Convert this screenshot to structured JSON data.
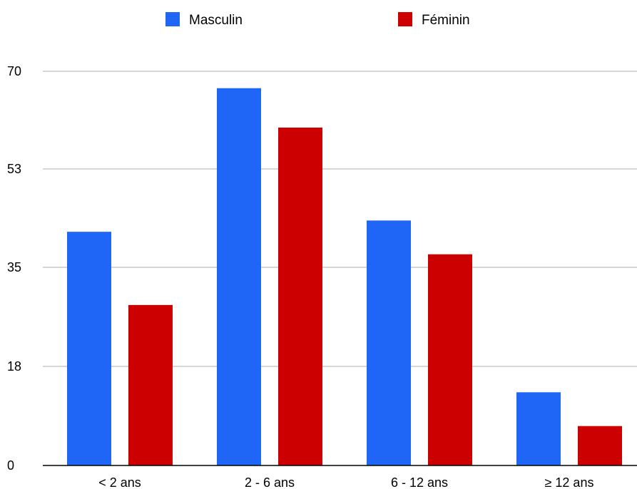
{
  "chart_data": {
    "type": "bar",
    "categories": [
      "< 2 ans",
      "2 - 6 ans",
      "6 - 12 ans",
      "≥ 12 ans"
    ],
    "series": [
      {
        "name": "Masculin",
        "color": "#1f66f7",
        "values": [
          41.5,
          67,
          43.5,
          13
        ]
      },
      {
        "name": "Féminin",
        "color": "#cc0000",
        "values": [
          28.5,
          60,
          37.5,
          7
        ]
      }
    ],
    "y_ticks": [
      "0",
      "18",
      "35",
      "53",
      "70"
    ],
    "ylim": [
      0,
      70
    ],
    "grid": true,
    "legend": "top-center",
    "title": "",
    "xlabel": "",
    "ylabel": ""
  }
}
